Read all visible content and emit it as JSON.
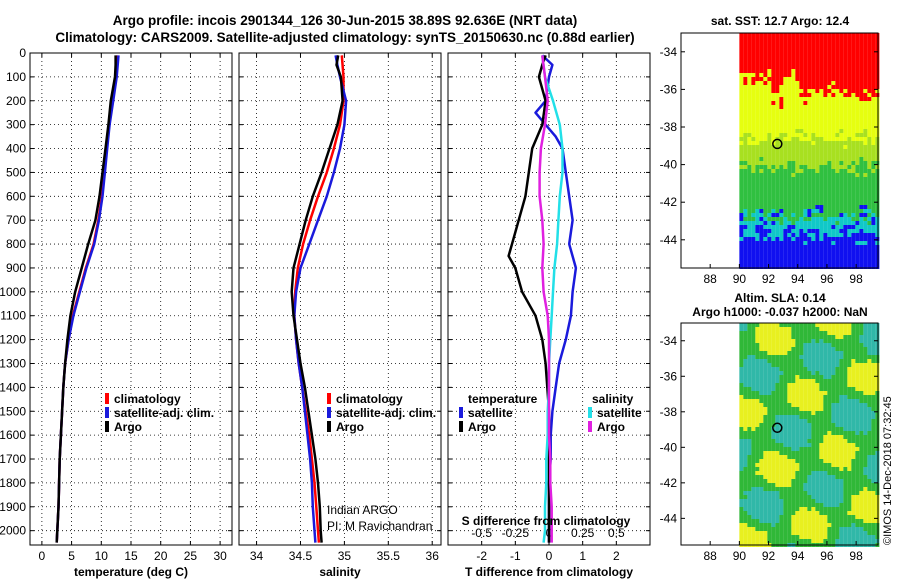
{
  "header": {
    "line1": "Argo profile: incois 2901344_126 30-Jun-2015 38.89S 92.636E (NRT data)",
    "line2": "Climatology: CARS2009. Satellite-adjusted climatology: synTS_20150630.nc (0.88d earlier)"
  },
  "colors": {
    "argo": "#000000",
    "climatology": "#ff0000",
    "satellite": "#1a1adc",
    "t_satellite": "#1a1adc",
    "s_satellite": "#22e0e8",
    "s_argo": "#e020e0",
    "map_red": "#ff0000",
    "map_yellow": "#e6ff10",
    "map_lime": "#a8e020",
    "map_green": "#30c040",
    "map_cyan": "#10c8c8",
    "map_blue": "#1010f0",
    "sla_yellow": "#e8f020",
    "sla_green": "#30b838",
    "sla_cyan": "#30b8a8"
  },
  "side_label": "©IMOS 14-Dec-2018 07:32:45",
  "chart_data": [
    {
      "type": "line",
      "id": "temperature",
      "xlabel": "temperature (deg C)",
      "xlim": [
        -2,
        32
      ],
      "xticks": [
        0,
        5,
        10,
        15,
        20,
        25,
        30
      ],
      "ylim": [
        2060,
        0
      ],
      "yticks": [
        0,
        100,
        200,
        300,
        400,
        500,
        600,
        700,
        800,
        900,
        1000,
        1100,
        1200,
        1300,
        1400,
        1500,
        1600,
        1700,
        1800,
        1900,
        2000
      ],
      "grid": true,
      "legend": [
        "climatology",
        "satellite-adj. clim.",
        "Argo"
      ],
      "legend_position": "bottom-right",
      "annotations": [],
      "series": [
        {
          "name": "climatology",
          "depth": [
            10,
            100,
            200,
            300,
            400,
            500,
            600,
            700,
            800,
            900,
            1000,
            1100,
            1200,
            1300,
            1400,
            1500,
            1600,
            1700,
            1800,
            1900,
            2000,
            2050
          ],
          "values": [
            12.7,
            12.5,
            11.8,
            11.3,
            10.9,
            10.5,
            10.1,
            9.5,
            8.7,
            7.4,
            6.3,
            5.2,
            4.5,
            3.9,
            3.6,
            3.4,
            3.2,
            3.0,
            2.9,
            2.8,
            2.6,
            2.5
          ]
        },
        {
          "name": "satellite-adj. clim.",
          "depth": [
            10,
            100,
            200,
            300,
            400,
            500,
            600,
            700,
            800,
            900,
            1000,
            1100,
            1200,
            1300,
            1400,
            1500,
            1600,
            1700,
            1800,
            1900,
            2000,
            2050
          ],
          "values": [
            12.9,
            12.6,
            12.0,
            11.4,
            11.0,
            10.6,
            10.2,
            9.6,
            8.8,
            7.5,
            6.4,
            5.3,
            4.5,
            3.9,
            3.6,
            3.4,
            3.2,
            3.0,
            2.9,
            2.8,
            2.6,
            2.5
          ]
        },
        {
          "name": "Argo",
          "depth": [
            10,
            50,
            100,
            200,
            300,
            400,
            500,
            600,
            700,
            800,
            900,
            1000,
            1100,
            1200,
            1300,
            1400,
            1500,
            1600,
            1700,
            1800,
            1900,
            2000,
            2050
          ],
          "values": [
            12.4,
            12.4,
            12.3,
            11.6,
            11.2,
            10.7,
            10.2,
            9.7,
            9.0,
            7.8,
            6.7,
            5.6,
            4.8,
            4.3,
            3.9,
            3.6,
            3.4,
            3.2,
            3.0,
            2.9,
            2.8,
            2.6,
            2.5
          ]
        }
      ]
    },
    {
      "type": "line",
      "id": "salinity",
      "xlabel": "salinity",
      "xlim": [
        33.8,
        36.1
      ],
      "xticks": [
        34,
        34.5,
        35,
        35.5,
        36
      ],
      "ylim": [
        2060,
        0
      ],
      "grid": true,
      "legend": [
        "climatology",
        "satellite-adj. clim.",
        "Argo"
      ],
      "legend_position": "bottom-right",
      "annotations": [
        "Indian ARGO",
        "PI: M Ravichandran"
      ],
      "series": [
        {
          "name": "climatology",
          "depth": [
            10,
            100,
            200,
            300,
            400,
            500,
            600,
            700,
            800,
            900,
            1000,
            1100,
            1200,
            1300,
            1400,
            1500,
            1600,
            1700,
            1800,
            1900,
            2000,
            2050
          ],
          "values": [
            34.97,
            34.99,
            34.99,
            34.95,
            34.88,
            34.8,
            34.7,
            34.61,
            34.53,
            34.47,
            34.44,
            34.43,
            34.45,
            34.48,
            34.52,
            34.56,
            34.6,
            34.63,
            34.66,
            34.68,
            34.7,
            34.71
          ]
        },
        {
          "name": "satellite-adj. clim.",
          "depth": [
            10,
            50,
            100,
            200,
            300,
            400,
            500,
            600,
            700,
            800,
            900,
            1000,
            1100,
            1200,
            1300,
            1400,
            1500,
            1600,
            1700,
            1800,
            1900,
            2000,
            2050
          ],
          "values": [
            34.9,
            34.92,
            34.95,
            35.02,
            35.0,
            34.95,
            34.88,
            34.8,
            34.7,
            34.6,
            34.5,
            34.45,
            34.43,
            34.45,
            34.48,
            34.52,
            34.55,
            34.58,
            34.61,
            34.63,
            34.64,
            34.66,
            34.67
          ]
        },
        {
          "name": "Argo",
          "depth": [
            10,
            50,
            100,
            200,
            300,
            400,
            500,
            600,
            700,
            800,
            900,
            1000,
            1100,
            1200,
            1300,
            1400,
            1500,
            1600,
            1700,
            1800,
            1900,
            2000,
            2050
          ],
          "values": [
            34.93,
            34.91,
            34.96,
            34.98,
            34.92,
            34.83,
            34.74,
            34.64,
            34.56,
            34.49,
            34.42,
            34.4,
            34.42,
            34.46,
            34.5,
            34.55,
            34.59,
            34.63,
            34.67,
            34.7,
            34.72,
            34.73,
            34.74
          ]
        }
      ]
    },
    {
      "type": "line",
      "id": "difference",
      "xlabel": "T difference from climatology",
      "xlim": [
        -3,
        3
      ],
      "xticks": [
        -2,
        -1,
        0,
        1,
        2
      ],
      "secondary_xlabel": "S difference from climatology",
      "secondary_xlim": [
        -0.75,
        0.75
      ],
      "secondary_xticks": [
        "-0.5",
        "-0.25",
        "0",
        "0.25",
        "0.5"
      ],
      "ylim": [
        2060,
        0
      ],
      "grid": true,
      "legend_titles": [
        "temperature",
        "salinity"
      ],
      "legend": [
        "satellite",
        "Argo",
        "satellite",
        "Argo"
      ],
      "series": [
        {
          "name": "T satellite",
          "depth": [
            10,
            50,
            100,
            200,
            250,
            300,
            350,
            400,
            500,
            600,
            700,
            800,
            900,
            1000,
            1100,
            1200,
            1300,
            1400,
            1500,
            1600,
            1700,
            1800,
            1900,
            2000,
            2050
          ],
          "values": [
            -0.2,
            0.1,
            0.0,
            -0.1,
            -0.4,
            -0.1,
            0.2,
            0.4,
            0.5,
            0.6,
            0.7,
            0.6,
            0.8,
            0.7,
            0.65,
            0.5,
            0.3,
            0.2,
            0.1,
            0.05,
            0.05,
            0.0,
            0.0,
            0.0,
            0.0
          ]
        },
        {
          "name": "T Argo",
          "depth": [
            10,
            50,
            100,
            200,
            300,
            400,
            500,
            600,
            700,
            800,
            850,
            900,
            1000,
            1100,
            1200,
            1300,
            1400,
            1500,
            1600,
            1700,
            1800,
            1900,
            2000,
            2050
          ],
          "values": [
            -0.1,
            -0.2,
            -0.3,
            -0.1,
            -0.2,
            -0.5,
            -0.6,
            -0.7,
            -0.9,
            -1.1,
            -1.2,
            -1.0,
            -0.8,
            -0.4,
            -0.2,
            -0.1,
            -0.05,
            0.0,
            0.0,
            0.0,
            0.0,
            0.0,
            0.0,
            0.0
          ]
        },
        {
          "name": "S satellite",
          "depth": [
            10,
            100,
            200,
            300,
            400,
            500,
            600,
            700,
            800,
            900,
            1000,
            1100,
            1200,
            1300,
            1400,
            1500,
            1600,
            1700,
            1800,
            1900,
            2000,
            2050
          ],
          "values": [
            -0.05,
            -0.03,
            0.03,
            0.08,
            0.1,
            0.1,
            0.08,
            0.07,
            0.06,
            0.04,
            0.03,
            0.02,
            0.01,
            0.0,
            0.0,
            -0.01,
            -0.01,
            -0.02,
            -0.02,
            -0.03,
            -0.03,
            -0.04
          ]
        },
        {
          "name": "S Argo",
          "depth": [
            10,
            100,
            200,
            300,
            400,
            500,
            600,
            700,
            800,
            900,
            1000,
            1100,
            1200,
            1300,
            1400,
            1500,
            1600,
            1700,
            1800,
            1900,
            2000,
            2050
          ],
          "values": [
            -0.05,
            -0.03,
            -0.01,
            -0.03,
            -0.06,
            -0.07,
            -0.07,
            -0.05,
            -0.04,
            -0.05,
            -0.04,
            -0.01,
            0.0,
            0.0,
            0.0,
            0.0,
            0.0,
            0.01,
            0.01,
            0.02,
            0.02,
            0.02
          ]
        }
      ]
    },
    {
      "type": "heatmap",
      "id": "sst_map",
      "title": "sat. SST: 12.7 Argo: 12.4",
      "xticks": [
        "88",
        "90",
        "92",
        "94",
        "96",
        "98"
      ],
      "yticks": [
        "-34",
        "-36",
        "-38",
        "-40",
        "-42",
        "-44"
      ],
      "xlim": [
        86,
        99.5
      ],
      "ylim": [
        -45.5,
        -33
      ],
      "argo_position": {
        "lon": 92.6,
        "lat": -38.9
      }
    },
    {
      "type": "heatmap",
      "id": "sla_map",
      "title_line1": "Altim. SLA: 0.14",
      "title_line2": "Argo h1000: -0.037 h2000: NaN",
      "xticks": [
        "88",
        "90",
        "92",
        "94",
        "96",
        "98"
      ],
      "yticks": [
        "-34",
        "-36",
        "-38",
        "-40",
        "-42",
        "-44"
      ],
      "xlim": [
        86,
        99.5
      ],
      "ylim": [
        -45.5,
        -33
      ],
      "argo_position": {
        "lon": 92.6,
        "lat": -38.9
      }
    }
  ]
}
